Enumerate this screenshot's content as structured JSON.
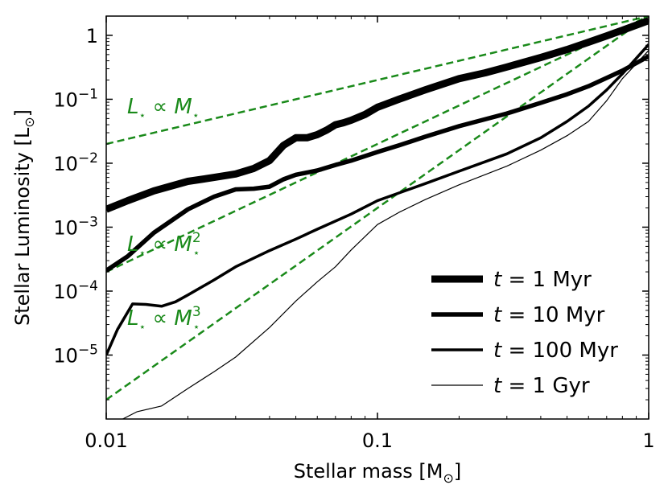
{
  "chart_data": {
    "type": "line",
    "title": "",
    "xlabel": "Stellar mass [M",
    "xlabel_sub": "⊙",
    "xlabel_end": "]",
    "ylabel": "Stellar Luminosity [L",
    "ylabel_sub": "⊙",
    "ylabel_end": "]",
    "x_scale": "log",
    "y_scale": "log",
    "xlim": [
      0.01,
      1
    ],
    "ylim": [
      1e-06,
      2
    ],
    "x_ticks": [
      {
        "value": 0.01,
        "label": "0.01"
      },
      {
        "value": 0.1,
        "label": "0.1"
      },
      {
        "value": 1,
        "label": "1"
      }
    ],
    "y_ticks": [
      {
        "value": 1e-05,
        "base": "10",
        "exp": "−5"
      },
      {
        "value": 0.0001,
        "base": "10",
        "exp": "−4"
      },
      {
        "value": 0.001,
        "base": "10",
        "exp": "−3"
      },
      {
        "value": 0.01,
        "base": "10",
        "exp": "−2"
      },
      {
        "value": 0.1,
        "base": "10",
        "exp": "−1"
      },
      {
        "value": 1,
        "base": "",
        "exp": "",
        "plain": "1"
      }
    ],
    "legend_position": "bottom-right",
    "series": [
      {
        "name": "t = 1 Myr",
        "label_var": "t",
        "label_rest": " = 1 Myr",
        "color": "#000000",
        "linewidth": 9,
        "x": [
          0.01,
          0.012,
          0.015,
          0.02,
          0.025,
          0.03,
          0.035,
          0.04,
          0.045,
          0.05,
          0.055,
          0.06,
          0.065,
          0.07,
          0.075,
          0.08,
          0.09,
          0.1,
          0.12,
          0.15,
          0.2,
          0.25,
          0.3,
          0.4,
          0.5,
          0.6,
          0.7,
          0.8,
          1.0
        ],
        "y": [
          0.0019,
          0.0026,
          0.0037,
          0.0052,
          0.006,
          0.0068,
          0.0083,
          0.011,
          0.019,
          0.025,
          0.025,
          0.028,
          0.033,
          0.04,
          0.043,
          0.047,
          0.058,
          0.075,
          0.1,
          0.14,
          0.21,
          0.26,
          0.32,
          0.45,
          0.6,
          0.78,
          0.98,
          1.2,
          1.7
        ]
      },
      {
        "name": "t = 10 Myr",
        "label_var": "t",
        "label_rest": " = 10 Myr",
        "color": "#000000",
        "linewidth": 5.5,
        "x": [
          0.01,
          0.012,
          0.015,
          0.02,
          0.025,
          0.03,
          0.035,
          0.04,
          0.045,
          0.05,
          0.06,
          0.07,
          0.08,
          0.1,
          0.12,
          0.15,
          0.2,
          0.3,
          0.4,
          0.5,
          0.6,
          0.8,
          1.0
        ],
        "y": [
          0.00021,
          0.00035,
          0.00082,
          0.0019,
          0.003,
          0.0039,
          0.004,
          0.0043,
          0.0056,
          0.0066,
          0.0077,
          0.0094,
          0.011,
          0.015,
          0.019,
          0.026,
          0.038,
          0.06,
          0.088,
          0.12,
          0.16,
          0.28,
          0.47
        ]
      },
      {
        "name": "t = 100 Myr",
        "label_var": "t",
        "label_rest": " = 100 Myr",
        "color": "#000000",
        "linewidth": 3.5,
        "x": [
          0.01,
          0.011,
          0.0125,
          0.014,
          0.016,
          0.018,
          0.02,
          0.025,
          0.03,
          0.04,
          0.05,
          0.06,
          0.08,
          0.1,
          0.15,
          0.2,
          0.3,
          0.4,
          0.5,
          0.6,
          0.7,
          0.8,
          1.0
        ],
        "y": [
          1e-05,
          2.5e-05,
          6.3e-05,
          6.2e-05,
          5.8e-05,
          6.8e-05,
          8.7e-05,
          0.00015,
          0.00024,
          0.00043,
          0.00065,
          0.00093,
          0.0016,
          0.0026,
          0.0048,
          0.0075,
          0.014,
          0.025,
          0.045,
          0.078,
          0.14,
          0.25,
          0.72
        ]
      },
      {
        "name": "t = 1 Gyr",
        "label_var": "t",
        "label_rest": " = 1 Gyr",
        "color": "#000000",
        "linewidth": 1.2,
        "x": [
          0.0115,
          0.013,
          0.016,
          0.02,
          0.025,
          0.03,
          0.04,
          0.05,
          0.06,
          0.07,
          0.08,
          0.1,
          0.12,
          0.15,
          0.2,
          0.3,
          0.4,
          0.5,
          0.6,
          0.7,
          0.8,
          1.0
        ],
        "y": [
          1e-06,
          1.3e-06,
          1.6e-06,
          3e-06,
          5.5e-06,
          9.3e-06,
          2.7e-05,
          7e-05,
          0.00014,
          0.00024,
          0.00044,
          0.0011,
          0.0017,
          0.0027,
          0.0046,
          0.009,
          0.016,
          0.027,
          0.045,
          0.095,
          0.21,
          0.58
        ]
      }
    ],
    "reference_lines": [
      {
        "color": "#1a8a1a",
        "dash": "dashed",
        "x": [
          0.01,
          1
        ],
        "y": [
          0.02,
          2
        ],
        "annotation": {
          "L": "L",
          "star": "⋆",
          "prop": " ∝ ",
          "M": "M",
          "exp": ""
        }
      },
      {
        "color": "#1a8a1a",
        "dash": "dashed",
        "x": [
          0.01,
          1
        ],
        "y": [
          0.0002,
          2
        ],
        "annotation": {
          "L": "L",
          "star": "⋆",
          "prop": " ∝ ",
          "M": "M",
          "exp": "2"
        }
      },
      {
        "color": "#1a8a1a",
        "dash": "dashed",
        "x": [
          0.01,
          1
        ],
        "y": [
          2e-06,
          2
        ],
        "annotation": {
          "L": "L",
          "star": "⋆",
          "prop": " ∝ ",
          "M": "M",
          "exp": "3"
        }
      }
    ]
  }
}
